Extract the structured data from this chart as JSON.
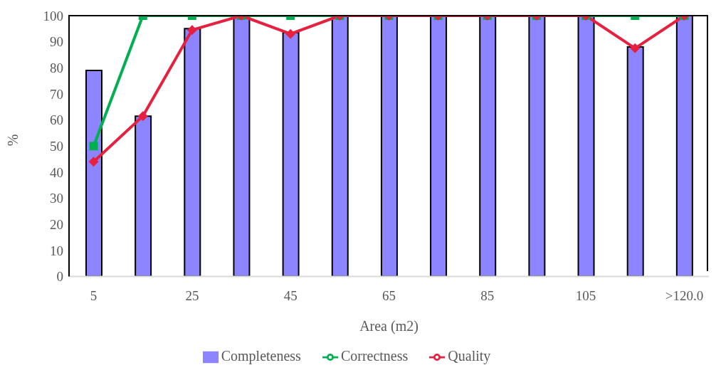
{
  "chart_data": {
    "type": "bar",
    "xlabel": "Area (m2)",
    "ylabel": "%",
    "categories": [
      "5",
      null,
      "25",
      null,
      "45",
      null,
      "65",
      null,
      "85",
      null,
      "105",
      null,
      ">120.0"
    ],
    "series": [
      {
        "name": "Completeness",
        "color": "#8c85ff",
        "values": [
          79,
          61.5,
          95,
          100,
          93.5,
          100,
          100,
          100,
          100,
          100,
          100,
          88,
          100
        ]
      },
      {
        "name": "Correctness",
        "type": "line",
        "color": "#00b050",
        "marker": "square",
        "values": [
          50,
          100,
          100,
          100,
          100,
          100,
          100,
          100,
          100,
          100,
          100,
          100,
          100
        ]
      },
      {
        "name": "Quality",
        "type": "line",
        "color": "#e8203f",
        "marker": "diamond",
        "values": [
          44,
          61.5,
          94.5,
          100,
          93,
          100,
          100,
          100,
          100,
          100,
          100,
          87.5,
          100
        ]
      }
    ],
    "ylim": [
      0,
      100
    ],
    "yticks": [
      0,
      10,
      20,
      30,
      40,
      50,
      60,
      70,
      80,
      90,
      100
    ],
    "grid": false,
    "legend": "bottom"
  }
}
